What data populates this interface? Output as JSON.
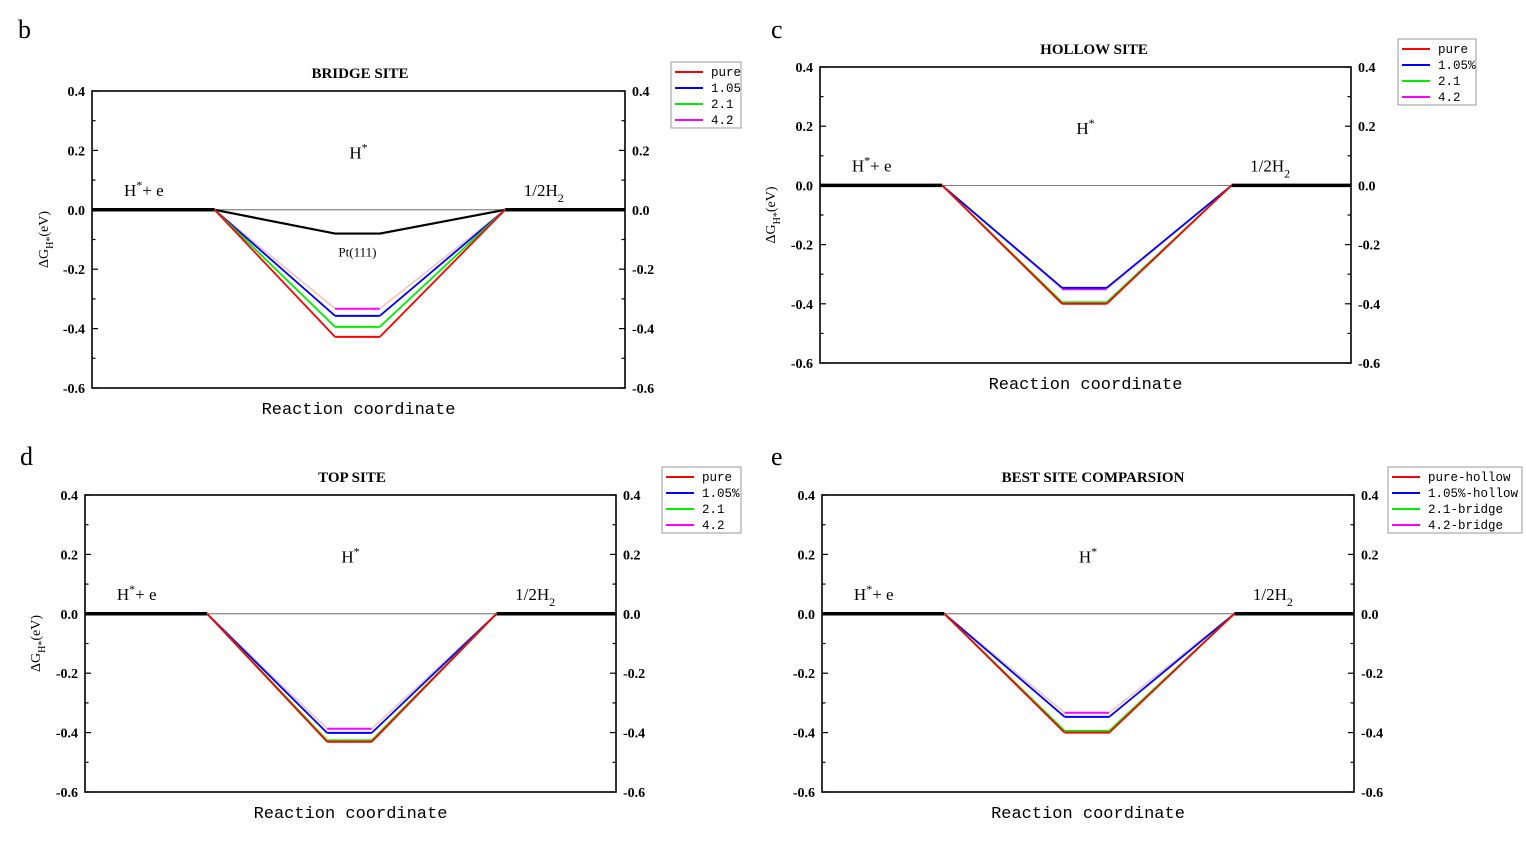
{
  "chart_data": [
    {
      "type": "line",
      "panel_letter": "b",
      "title": "BRIDGE SITE",
      "xlabel": "Reaction coordinate",
      "ylabel": [
        "ΔG",
        "H*",
        "(eV)"
      ],
      "ylim": [
        -0.6,
        0.4
      ],
      "yticks": [
        "0.4",
        "0.2",
        "0.0",
        "-0.2",
        "-0.4",
        "-0.6"
      ],
      "grid": false,
      "legend_position": "top-right-outside",
      "categories": [
        "H*+ e",
        "H*",
        "1/2H2"
      ],
      "state_labels": {
        "initial": [
          "H",
          "*",
          "+ e"
        ],
        "intermediate": [
          "H",
          "*"
        ],
        "final": [
          "1/2H",
          "2"
        ]
      },
      "series": [
        {
          "name": "pure",
          "color": "#ff0000",
          "values": [
            0,
            -0.428,
            0
          ]
        },
        {
          "name": "1.05",
          "color": "#0000ff",
          "values": [
            0,
            -0.357,
            0
          ]
        },
        {
          "name": "2.1",
          "color": "#00ee00",
          "values": [
            0,
            -0.394,
            0
          ]
        },
        {
          "name": "4.2",
          "color": "#ff00ff",
          "values": [
            0,
            -0.333,
            0
          ]
        }
      ],
      "reference": {
        "label": "Pt(111)",
        "color": "#000000",
        "values": [
          0,
          -0.08,
          0
        ]
      }
    },
    {
      "type": "line",
      "panel_letter": "c",
      "title": "HOLLOW SITE",
      "xlabel": "Reaction coordinate",
      "ylabel": [
        "ΔG",
        "H*",
        "(eV)"
      ],
      "ylim": [
        -0.6,
        0.4
      ],
      "yticks": [
        "0.4",
        "0.2",
        "0.0",
        "-0.2",
        "-0.4",
        "-0.6"
      ],
      "grid": false,
      "legend_position": "top-right-outside",
      "categories": [
        "H*+ e",
        "H*",
        "1/2H2"
      ],
      "state_labels": {
        "initial": [
          "H",
          "*",
          "+ e"
        ],
        "intermediate": [
          "H",
          "*"
        ],
        "final": [
          "1/2H",
          "2"
        ]
      },
      "series": [
        {
          "name": "pure",
          "color": "#ff0000",
          "values": [
            0,
            -0.4,
            0
          ]
        },
        {
          "name": "1.05%",
          "color": "#0000ff",
          "values": [
            0,
            -0.346,
            0
          ]
        },
        {
          "name": "2.1",
          "color": "#00ee00",
          "values": [
            0,
            -0.395,
            0
          ]
        },
        {
          "name": "4.2",
          "color": "#ff00ff",
          "values": [
            0,
            -0.351,
            0
          ]
        }
      ]
    },
    {
      "type": "line",
      "panel_letter": "d",
      "title": "TOP SITE",
      "xlabel": "Reaction coordinate",
      "ylabel": [
        "ΔG",
        "H*",
        "(eV)"
      ],
      "ylim": [
        -0.6,
        0.4
      ],
      "yticks": [
        "0.4",
        "0.2",
        "0.0",
        "-0.2",
        "-0.4",
        "-0.6"
      ],
      "grid": false,
      "legend_position": "top-right-outside",
      "categories": [
        "H*+ e",
        "H*",
        "1/2H2"
      ],
      "state_labels": {
        "initial": [
          "H",
          "*",
          "+ e"
        ],
        "intermediate": [
          "H",
          "*"
        ],
        "final": [
          "1/2H",
          "2"
        ]
      },
      "series": [
        {
          "name": "pure",
          "color": "#ff0000",
          "values": [
            0,
            -0.431,
            0
          ]
        },
        {
          "name": "1.05%",
          "color": "#0000ff",
          "values": [
            0,
            -0.401,
            0
          ]
        },
        {
          "name": "2.1",
          "color": "#00ee00",
          "values": [
            0,
            -0.426,
            0
          ]
        },
        {
          "name": "4.2",
          "color": "#ff00ff",
          "values": [
            0,
            -0.387,
            0
          ]
        }
      ]
    },
    {
      "type": "line",
      "panel_letter": "e",
      "title": "BEST SITE COMPARSION",
      "xlabel": "Reaction coordinate",
      "ylabel": null,
      "ylim": [
        -0.6,
        0.4
      ],
      "yticks": [
        "0.4",
        "0.2",
        "0.0",
        "-0.2",
        "-0.4",
        "-0.6"
      ],
      "grid": false,
      "legend_position": "top-right-outside",
      "categories": [
        "H*+ e",
        "H*",
        "1/2H2"
      ],
      "state_labels": {
        "initial": [
          "H",
          "*",
          "+ e"
        ],
        "intermediate": [
          "H",
          "*"
        ],
        "final": [
          "1/2H",
          "2"
        ]
      },
      "series": [
        {
          "name": "pure-hollow",
          "color": "#ff0000",
          "values": [
            0,
            -0.4,
            0
          ]
        },
        {
          "name": "1.05%-hollow",
          "color": "#0000ff",
          "values": [
            0,
            -0.347,
            0
          ]
        },
        {
          "name": "2.1-bridge",
          "color": "#00ee00",
          "values": [
            0,
            -0.394,
            0
          ]
        },
        {
          "name": "4.2-bridge",
          "color": "#ff00ff",
          "values": [
            0,
            -0.333,
            0
          ]
        }
      ]
    }
  ]
}
